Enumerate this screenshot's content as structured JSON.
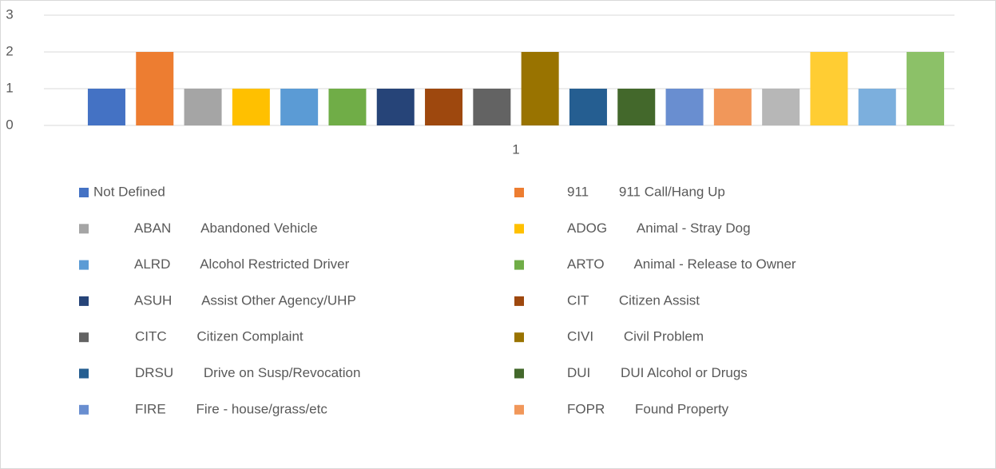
{
  "chart_data": {
    "type": "bar",
    "categories": [
      "1"
    ],
    "ylim": [
      0,
      3
    ],
    "yticks": [
      0,
      1,
      2,
      3
    ],
    "grid": true,
    "legend": "bottom",
    "series": [
      {
        "name": "Not Defined",
        "color": "#4472c4",
        "values": [
          1
        ]
      },
      {
        "name": "911        911 Call/Hang Up",
        "color": "#ed7d31",
        "values": [
          2
        ]
      },
      {
        "name": "           ABAN        Abandoned Vehicle",
        "color": "#a5a5a5",
        "values": [
          1
        ]
      },
      {
        "name": "ADOG        Animal - Stray Dog",
        "color": "#ffc000",
        "values": [
          1
        ]
      },
      {
        "name": "           ALRD        Alcohol Restricted Driver",
        "color": "#5b9bd5",
        "values": [
          1
        ]
      },
      {
        "name": "ARTO        Animal - Release to Owner",
        "color": "#70ad47",
        "values": [
          1
        ]
      },
      {
        "name": "           ASUH        Assist Other Agency/UHP",
        "color": "#264478",
        "values": [
          1
        ]
      },
      {
        "name": "CIT        Citizen Assist",
        "color": "#9e480e",
        "values": [
          1
        ]
      },
      {
        "name": "           CITC        Citizen Complaint",
        "color": "#636363",
        "values": [
          1
        ]
      },
      {
        "name": "CIVI        Civil Problem",
        "color": "#997300",
        "values": [
          2
        ]
      },
      {
        "name": "           DRSU        Drive on Susp/Revocation",
        "color": "#255e91",
        "values": [
          1
        ]
      },
      {
        "name": "DUI        DUI Alcohol or Drugs",
        "color": "#43682b",
        "values": [
          1
        ]
      },
      {
        "name": "           FIRE        Fire - house/grass/etc",
        "color": "#698ed0",
        "values": [
          1
        ]
      },
      {
        "name": "FOPR        Found Property",
        "color": "#f1975a",
        "values": [
          1
        ]
      },
      {
        "color": "#b7b7b7",
        "values": [
          1
        ]
      },
      {
        "color": "#ffcd33",
        "values": [
          2
        ]
      },
      {
        "color": "#7cafdd",
        "values": [
          1
        ]
      },
      {
        "color": "#8cc168",
        "values": [
          2
        ]
      }
    ]
  }
}
